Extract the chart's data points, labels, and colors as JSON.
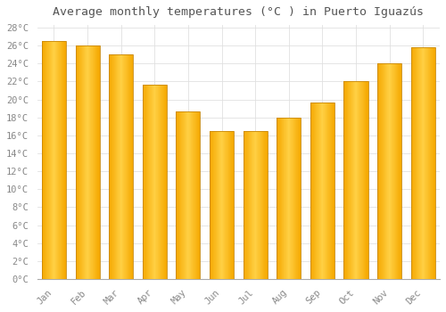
{
  "title": "Average monthly temperatures (°C ) in Puerto Iguazús",
  "months": [
    "Jan",
    "Feb",
    "Mar",
    "Apr",
    "May",
    "Jun",
    "Jul",
    "Aug",
    "Sep",
    "Oct",
    "Nov",
    "Dec"
  ],
  "values": [
    26.5,
    26.0,
    25.0,
    21.7,
    18.7,
    16.5,
    16.5,
    18.0,
    19.7,
    22.0,
    24.0,
    25.8
  ],
  "bar_color_center": "#FFD044",
  "bar_color_edge": "#F5A800",
  "background_color": "#FFFFFF",
  "plot_bg_color": "#FFFFFF",
  "grid_color": "#E0E0E0",
  "tick_color": "#888888",
  "title_color": "#555555",
  "ylim_max": 28,
  "ytick_step": 2,
  "title_fontsize": 9.5,
  "tick_fontsize": 7.5,
  "bar_width": 0.72
}
